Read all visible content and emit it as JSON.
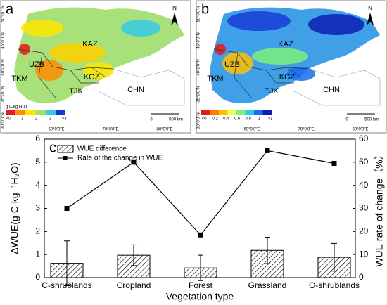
{
  "maps": [
    {
      "label": "a",
      "countries": [
        "KAZ",
        "UZB",
        "TKM",
        "KGZ",
        "TJK",
        "CHN"
      ],
      "lat_labels": [
        "50°0'0\"N",
        "45°0'0\"N",
        "40°0'0\"N",
        "35°0'0\"N",
        "30°0'0\"N"
      ],
      "lon_labels": [
        "60°0'0\"E",
        "70°0'0\"E",
        "80°0'0\"E",
        "90°0'0\"E"
      ],
      "legend_title": "g C/kg H₂O",
      "legend_labels": [
        "<0",
        "1",
        "2",
        "3",
        ">3"
      ],
      "north": "N",
      "scale_labels": [
        "0",
        "500 km"
      ]
    },
    {
      "label": "b",
      "countries": [
        "KAZ",
        "UZB",
        "TKM",
        "KGZ",
        "TJK",
        "CHN"
      ],
      "lat_labels": [
        "50°0'0\"N",
        "45°0'0\"N",
        "40°0'0\"N",
        "35°0'0\"N",
        "30°0'0\"N"
      ],
      "lon_labels": [
        "60°0'0\"E",
        "70°0'0\"E",
        "80°0'0\"E",
        "90°0'0\"E"
      ],
      "legend_labels": [
        "<0",
        "0.2",
        "0.4",
        "0.6",
        "0.8",
        "1",
        ">1"
      ],
      "north": "N",
      "scale_labels": [
        "0",
        "500 km"
      ]
    }
  ],
  "chart_data": {
    "type": "bar",
    "panel_label": "c",
    "categories": [
      "C-shrublands",
      "Cropland",
      "Forest",
      "Grassland",
      "O-shrublands"
    ],
    "series": [
      {
        "name": "WUE difference",
        "type": "bar",
        "color": "#000000",
        "values": [
          0.62,
          0.97,
          0.42,
          1.18,
          0.88
        ],
        "errors": [
          0.97,
          0.45,
          0.55,
          0.57,
          0.6
        ]
      },
      {
        "name": "Rate of the change in WUE",
        "type": "line",
        "axis": "y2",
        "color": "#000000",
        "values": [
          30,
          50,
          18.5,
          55,
          49.5
        ]
      }
    ],
    "ylim": [
      0,
      6
    ],
    "yticks": [
      0,
      1,
      2,
      3,
      4,
      5,
      6
    ],
    "y2lim": [
      0,
      60
    ],
    "y2ticks": [
      0,
      10,
      20,
      30,
      40,
      50,
      60
    ],
    "xlabel": "Vegetation type",
    "ylabel": "ΔWUE(g C kg⁻¹H₂O)",
    "y2label": "WUE rate of change（%）"
  }
}
